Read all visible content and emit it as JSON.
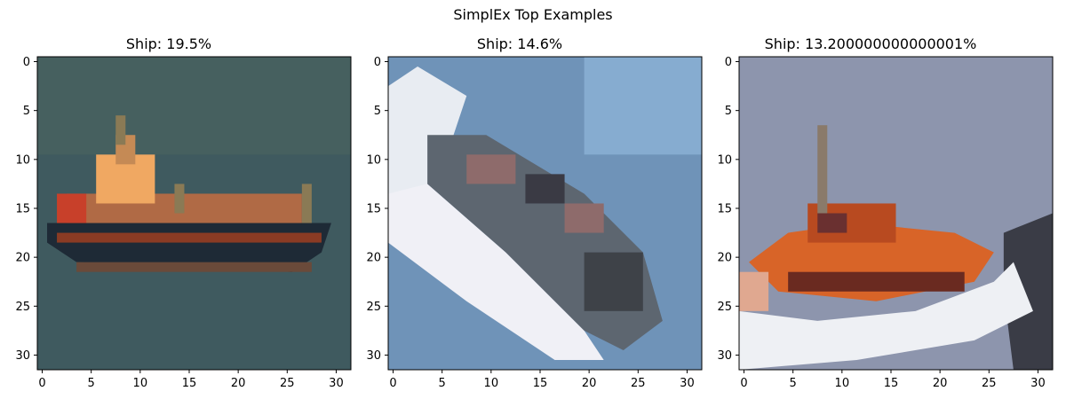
{
  "figure": {
    "title": "SimplEx Top Examples"
  },
  "chart_data": [
    {
      "type": "heatmap",
      "title": "Ship: 19.5%",
      "xlim": [
        -0.5,
        31.5
      ],
      "ylim": [
        31.5,
        -0.5
      ],
      "xticks": [
        0,
        5,
        10,
        15,
        20,
        25,
        30
      ],
      "yticks": [
        0,
        5,
        10,
        15,
        20,
        25,
        30
      ],
      "image_size": [
        32,
        32
      ],
      "image_content": "small cargo ship with orange superstructure and dark hull on teal water",
      "background_color": "#3f5a5f",
      "grid": false
    },
    {
      "type": "heatmap",
      "title": "Ship: 14.6%",
      "xlim": [
        -0.5,
        31.5
      ],
      "ylim": [
        31.5,
        -0.5
      ],
      "xticks": [
        0,
        5,
        10,
        15,
        20,
        25,
        30
      ],
      "yticks": [
        0,
        5,
        10,
        15,
        20,
        25,
        30
      ],
      "image_size": [
        32,
        32
      ],
      "image_content": "aerial view of white ship hull with dark deck cargo, diagonal, on blue sea",
      "background_color": "#6f93b8",
      "grid": false
    },
    {
      "type": "heatmap",
      "title": "Ship: 13.200000000000001%",
      "xlim": [
        -0.5,
        31.5
      ],
      "ylim": [
        31.5,
        -0.5
      ],
      "xticks": [
        0,
        5,
        10,
        15,
        20,
        25,
        30
      ],
      "yticks": [
        0,
        5,
        10,
        15,
        20,
        25,
        30
      ],
      "image_size": [
        32,
        32
      ],
      "image_content": "orange lifeboat with white hull on grey-blue water",
      "background_color": "#8d95ad",
      "grid": false
    }
  ]
}
